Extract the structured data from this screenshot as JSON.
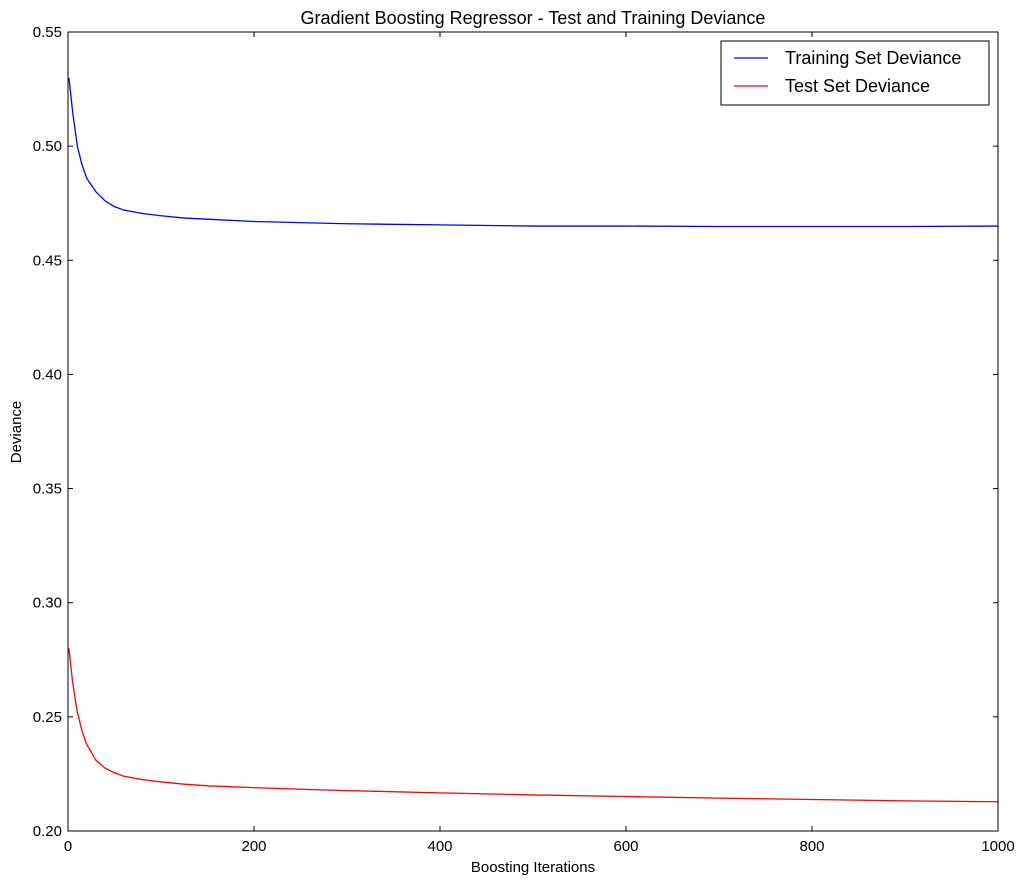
{
  "chart_data": {
    "type": "line",
    "title": "Gradient Boosting Regressor - Test and Training Deviance",
    "xlabel": "Boosting Iterations",
    "ylabel": "Deviance",
    "xlim": [
      0,
      1000
    ],
    "ylim": [
      0.2,
      0.55
    ],
    "xticks": [
      0,
      200,
      400,
      600,
      800,
      1000
    ],
    "xtick_labels": [
      "0",
      "200",
      "400",
      "600",
      "800",
      "1000"
    ],
    "yticks": [
      0.2,
      0.25,
      0.3,
      0.35,
      0.4,
      0.45,
      0.5,
      0.55
    ],
    "ytick_labels": [
      "0.20",
      "0.25",
      "0.30",
      "0.35",
      "0.40",
      "0.45",
      "0.50",
      "0.55"
    ],
    "grid": false,
    "legend_position": "top-right",
    "series": [
      {
        "name": "Training Set Deviance",
        "color": "#0000ff",
        "x": [
          1,
          5,
          10,
          15,
          20,
          30,
          40,
          50,
          60,
          80,
          100,
          125,
          150,
          200,
          250,
          300,
          400,
          500,
          600,
          700,
          800,
          900,
          1000
        ],
        "y": [
          0.53,
          0.515,
          0.5,
          0.492,
          0.486,
          0.48,
          0.476,
          0.4735,
          0.472,
          0.4705,
          0.4695,
          0.4685,
          0.468,
          0.467,
          0.4665,
          0.466,
          0.4655,
          0.465,
          0.465,
          0.4648,
          0.4648,
          0.4648,
          0.465
        ]
      },
      {
        "name": "Test Set Deviance",
        "color": "#ff0000",
        "x": [
          1,
          5,
          10,
          15,
          20,
          30,
          40,
          50,
          60,
          80,
          100,
          125,
          150,
          200,
          250,
          300,
          400,
          500,
          600,
          700,
          800,
          900,
          1000
        ],
        "y": [
          0.28,
          0.265,
          0.252,
          0.244,
          0.238,
          0.231,
          0.2275,
          0.2255,
          0.224,
          0.2225,
          0.2215,
          0.2205,
          0.2198,
          0.219,
          0.2183,
          0.2177,
          0.2167,
          0.2158,
          0.2151,
          0.2144,
          0.2138,
          0.2132,
          0.2128
        ]
      }
    ]
  }
}
